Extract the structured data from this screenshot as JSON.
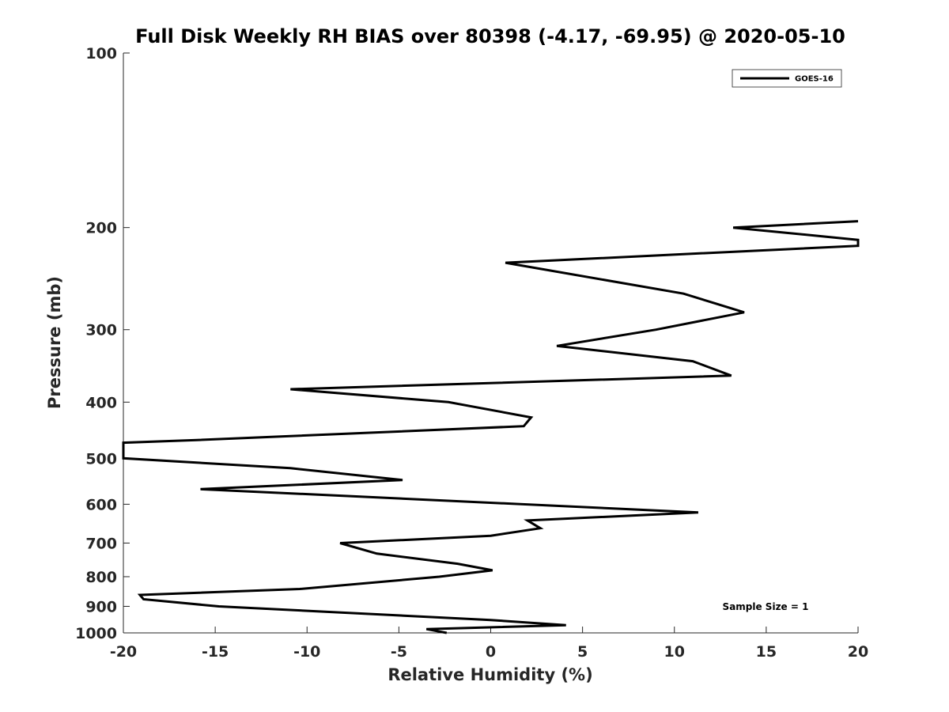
{
  "chart_data": {
    "type": "line",
    "title": "Full Disk Weekly RH BIAS over 80398 (-4.17, -69.95) @ 2020-05-10",
    "xlabel": "Relative Humidity (%)",
    "ylabel": "Pressure (mb)",
    "xlim": [
      -20,
      20
    ],
    "ylim": [
      100,
      1000
    ],
    "yscale": "log",
    "y_reversed": true,
    "grid": false,
    "legend_placement": "top-right",
    "xticks": [
      "-20",
      "-15",
      "-10",
      "-5",
      "0",
      "5",
      "10",
      "15",
      "20"
    ],
    "yticks": [
      "100",
      "200",
      "300",
      "400",
      "500",
      "600",
      "700",
      "800",
      "900",
      "1000"
    ],
    "series": [
      {
        "name": "GOES-16",
        "color": "#000000",
        "points": [
          {
            "x": 20.0,
            "p": 195
          },
          {
            "x": 13.2,
            "p": 200
          },
          {
            "x": 20.0,
            "p": 210
          },
          {
            "x": 20.0,
            "p": 215
          },
          {
            "x": 0.8,
            "p": 230
          },
          {
            "x": 10.5,
            "p": 260
          },
          {
            "x": 13.8,
            "p": 280
          },
          {
            "x": 9.0,
            "p": 300
          },
          {
            "x": 3.6,
            "p": 320
          },
          {
            "x": 11.0,
            "p": 340
          },
          {
            "x": 13.1,
            "p": 360
          },
          {
            "x": -10.9,
            "p": 380
          },
          {
            "x": -2.3,
            "p": 400
          },
          {
            "x": 2.2,
            "p": 425
          },
          {
            "x": 1.8,
            "p": 440
          },
          {
            "x": -16.0,
            "p": 465
          },
          {
            "x": -20.0,
            "p": 470
          },
          {
            "x": -20.0,
            "p": 500
          },
          {
            "x": -10.9,
            "p": 520
          },
          {
            "x": -4.8,
            "p": 545
          },
          {
            "x": -15.8,
            "p": 565
          },
          {
            "x": 11.3,
            "p": 620
          },
          {
            "x": 2.0,
            "p": 640
          },
          {
            "x": 2.7,
            "p": 660
          },
          {
            "x": 0.0,
            "p": 680
          },
          {
            "x": -8.2,
            "p": 700
          },
          {
            "x": -6.2,
            "p": 730
          },
          {
            "x": -1.8,
            "p": 760
          },
          {
            "x": 0.1,
            "p": 780
          },
          {
            "x": -2.8,
            "p": 800
          },
          {
            "x": -10.4,
            "p": 840
          },
          {
            "x": -19.1,
            "p": 860
          },
          {
            "x": -18.9,
            "p": 875
          },
          {
            "x": -14.8,
            "p": 900
          },
          {
            "x": 0.0,
            "p": 950
          },
          {
            "x": 4.1,
            "p": 970
          },
          {
            "x": -3.5,
            "p": 985
          },
          {
            "x": -2.4,
            "p": 1000
          }
        ]
      }
    ],
    "annotations": [
      {
        "text": "Sample Size = 1"
      }
    ]
  }
}
